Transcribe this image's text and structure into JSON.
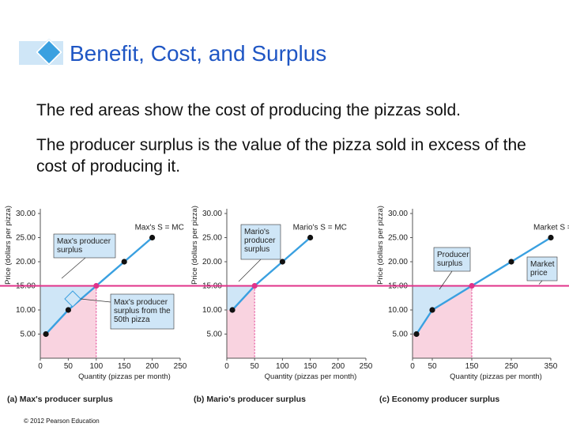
{
  "slide": {
    "title": "Benefit, Cost, and Surplus",
    "paragraphs": [
      "The red areas show the cost of producing the pizzas sold.",
      "The producer surplus is the value of the pizza sold in excess of the cost of producing it."
    ],
    "copyright": "© 2012 Pearson Education"
  },
  "colors": {
    "title": "#1f56c4",
    "supply_line": "#3aa0e0",
    "price_line": "#e0338a",
    "producer_surplus": "#cfe6f7",
    "cost_area": "#f9d3e0"
  },
  "chart_data": [
    {
      "type": "line",
      "title": "(a) Max's producer surplus",
      "xlabel": "Quantity (pizzas per month)",
      "ylabel": "Price (dollars per pizza)",
      "xlim": [
        0,
        250
      ],
      "ylim": [
        0,
        30
      ],
      "x_ticks": [
        0,
        50,
        100,
        150,
        200,
        250
      ],
      "y_ticks": [
        5,
        10,
        15,
        20,
        25,
        30
      ],
      "y_tick_labels": [
        "5.00",
        "10.00",
        "15.00",
        "20.00",
        "25.00",
        "30.00"
      ],
      "supply_label": "Max's S = MC",
      "supply_points": [
        [
          10,
          5
        ],
        [
          50,
          10
        ],
        [
          100,
          15
        ],
        [
          150,
          20
        ],
        [
          200,
          25
        ]
      ],
      "price": 15,
      "quantity_sold": 100,
      "annotations": [
        "Max's producer surplus",
        "Max's producer surplus from the 50th pizza"
      ],
      "marked_pizza": 50
    },
    {
      "type": "line",
      "title": "(b) Mario's producer surplus",
      "xlabel": "Quantity (pizzas per month)",
      "ylabel": "Price (dollars per pizza)",
      "xlim": [
        0,
        250
      ],
      "ylim": [
        0,
        30
      ],
      "x_ticks": [
        0,
        50,
        100,
        150,
        200,
        250
      ],
      "y_ticks": [
        5,
        10,
        15,
        20,
        25,
        30
      ],
      "y_tick_labels": [
        "5.00",
        "10.00",
        "15.00",
        "20.00",
        "25.00",
        "30.00"
      ],
      "supply_label": "Mario's S = MC",
      "supply_points": [
        [
          10,
          10
        ],
        [
          50,
          15
        ],
        [
          100,
          20
        ],
        [
          150,
          25
        ]
      ],
      "price": 15,
      "quantity_sold": 50,
      "annotations": [
        "Mario's producer surplus"
      ]
    },
    {
      "type": "line",
      "title": "(c) Economy producer surplus",
      "xlabel": "Quantity (pizzas per month)",
      "ylabel": "Price (dollars per pizza)",
      "xlim": [
        0,
        350
      ],
      "ylim": [
        0,
        30
      ],
      "x_ticks": [
        0,
        50,
        150,
        250,
        350
      ],
      "y_ticks": [
        5,
        10,
        15,
        20,
        25,
        30
      ],
      "y_tick_labels": [
        "5.00",
        "10.00",
        "15.00",
        "20.00",
        "25.00",
        "30.00"
      ],
      "supply_label": "Market S = MSC",
      "supply_points": [
        [
          10,
          5
        ],
        [
          50,
          10
        ],
        [
          150,
          15
        ],
        [
          250,
          20
        ],
        [
          350,
          25
        ]
      ],
      "price": 15,
      "quantity_sold": 150,
      "annotations": [
        "Producer surplus",
        "Market price"
      ]
    }
  ]
}
